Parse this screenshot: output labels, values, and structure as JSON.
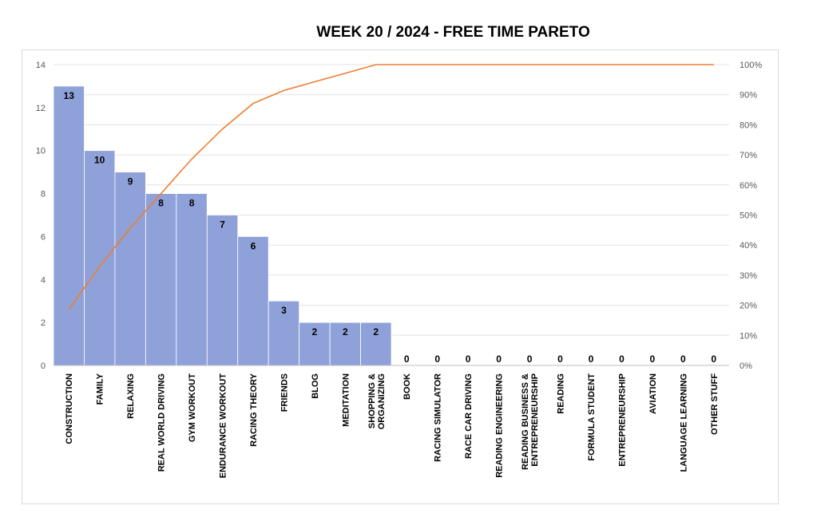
{
  "chart_data": {
    "type": "bar",
    "title": "WEEK 20 / 2024  - FREE TIME PARETO",
    "categories": [
      "CONSTRUCTION",
      "FAMILY",
      "RELAXING",
      "REAL WORLD DRIVING",
      "GYM WORKOUT",
      "ENDURANCE WORKOUT",
      "RACING THEORY",
      "FRIENDS",
      "BLOG",
      "MEDITATION",
      "SHOPPING & ORGANIZING",
      "BOOK",
      "RACING SIMULATOR",
      "RACE CAR DRIVING",
      "READING ENGINEERING",
      "READING BUSINESS & ENTREPRENEURSHIP",
      "READING",
      "FORMULA STUDENT",
      "ENTREPRENEURSHIP",
      "AVIATION",
      "LANGUAGE LEARNING",
      "OTHER STUFF"
    ],
    "category_lines": [
      [
        "CONSTRUCTION"
      ],
      [
        "FAMILY"
      ],
      [
        "RELAXING"
      ],
      [
        "REAL WORLD DRIVING"
      ],
      [
        "GYM WORKOUT"
      ],
      [
        "ENDURANCE WORKOUT"
      ],
      [
        "RACING THEORY"
      ],
      [
        "FRIENDS"
      ],
      [
        "BLOG"
      ],
      [
        "MEDITATION"
      ],
      [
        "SHOPPING &",
        "ORGANIZING"
      ],
      [
        "BOOK"
      ],
      [
        "RACING SIMULATOR"
      ],
      [
        "RACE CAR DRIVING"
      ],
      [
        "READING ENGINEERING"
      ],
      [
        "READING BUSINESS &",
        "ENTREPRENEURSHIP"
      ],
      [
        "READING"
      ],
      [
        "FORMULA STUDENT"
      ],
      [
        "ENTREPRENEURSHIP"
      ],
      [
        "AVIATION"
      ],
      [
        "LANGUAGE LEARNING"
      ],
      [
        "OTHER STUFF"
      ]
    ],
    "series": [
      {
        "kind": "bar",
        "values": [
          13,
          10,
          9,
          8,
          8,
          7,
          6,
          3,
          2,
          2,
          2,
          0,
          0,
          0,
          0,
          0,
          0,
          0,
          0,
          0,
          0,
          0
        ],
        "data_labels": [
          "13",
          "10",
          "9",
          "8",
          "8",
          "7",
          "6",
          "3",
          "2",
          "2",
          "2",
          "0",
          "0",
          "0",
          "0",
          "0",
          "0",
          "0",
          "0",
          "0",
          "0",
          "0"
        ],
        "color": "#8fa1d9"
      },
      {
        "kind": "line",
        "axis": "secondary",
        "values": [
          18.6,
          32.9,
          45.7,
          57.1,
          68.6,
          78.6,
          87.1,
          91.4,
          94.3,
          97.1,
          100,
          100,
          100,
          100,
          100,
          100,
          100,
          100,
          100,
          100,
          100,
          100
        ],
        "color": "#ed7d31"
      }
    ],
    "ylim": [
      0,
      14
    ],
    "yticks": [
      "0",
      "2",
      "4",
      "6",
      "8",
      "10",
      "12",
      "14"
    ],
    "y2lim": [
      0,
      100
    ],
    "y2ticks": [
      "0%",
      "10%",
      "20%",
      "30%",
      "40%",
      "50%",
      "60%",
      "70%",
      "80%",
      "90%",
      "100%"
    ],
    "grid": true,
    "legend": "none"
  }
}
